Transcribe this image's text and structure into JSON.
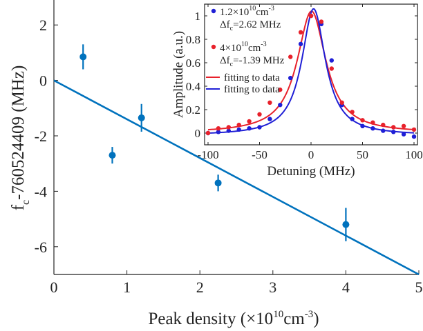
{
  "chart_data": [
    {
      "type": "scatter",
      "xlabel_main": "Peak density (×10",
      "xlabel_sup": "10",
      "xlabel_unit": "cm",
      "xlabel_unit_sup": "-3",
      "xlabel_close": ")",
      "ylabel_f": "f",
      "ylabel_sub": "c",
      "ylabel_rest": "-760524409 (MHz)",
      "xlim": [
        0,
        5
      ],
      "ylim": [
        -7,
        3
      ],
      "xticks": [
        0,
        1,
        2,
        3,
        4,
        5
      ],
      "yticks": [
        -6,
        -4,
        -2,
        0,
        2
      ],
      "color": "#0072BD",
      "series": [
        {
          "x": [
            0.4,
            0.8,
            1.2,
            2.25,
            4.0
          ],
          "y": [
            0.85,
            -2.7,
            -1.35,
            -3.7,
            -5.2
          ],
          "yerr": [
            0.45,
            0.3,
            0.5,
            0.3,
            0.6
          ]
        }
      ],
      "fit_line": {
        "x": [
          0,
          5
        ],
        "y": [
          0.0,
          -7.0
        ]
      }
    },
    {
      "type": "scatter",
      "xlabel": "Detuning (MHz)",
      "ylabel": "Amplitude (a.u.)",
      "xlim": [
        -100,
        100
      ],
      "ylim": [
        -0.1,
        1.1
      ],
      "xticks": [
        -100,
        -50,
        0,
        50,
        100
      ],
      "yticks": [
        0,
        0.2,
        0.4,
        0.6,
        0.8,
        1
      ],
      "legend": [
        {
          "line1": "1.2×10",
          "sup1": "10",
          "unit1": "cm",
          "sup2": "-3",
          "line2": "Δf",
          "sub": "c",
          "line2b": "=2.62 MHz",
          "color": "#1f1fd6"
        },
        {
          "line1": "4×10",
          "sup1": "10",
          "unit1": "cm",
          "sup2": "-3",
          "line2": "Δf",
          "sub": "c",
          "line2b": "=-1.39 MHz",
          "color": "#e8212b"
        },
        {
          "label": "fitting to data",
          "color": "#e8212b"
        },
        {
          "label": "fitting to data",
          "color": "#1f1fd6"
        }
      ],
      "series": [
        {
          "color": "#1f1fd6",
          "x": [
            -100,
            -90,
            -80,
            -70,
            -60,
            -50,
            -40,
            -30,
            -20,
            -10,
            0,
            10,
            20,
            30,
            40,
            50,
            60,
            70,
            80,
            90,
            100
          ],
          "y": [
            0.0,
            0.01,
            0.02,
            0.03,
            0.04,
            0.05,
            0.12,
            0.24,
            0.47,
            0.76,
            1.0,
            0.93,
            0.62,
            0.24,
            0.12,
            0.06,
            0.04,
            0.02,
            0.01,
            -0.01,
            -0.03
          ]
        },
        {
          "color": "#e8212b",
          "x": [
            -100,
            -90,
            -80,
            -70,
            -60,
            -50,
            -40,
            -30,
            -20,
            -10,
            0,
            10,
            20,
            30,
            40,
            50,
            60,
            70,
            80,
            90,
            100
          ],
          "y": [
            0.0,
            0.04,
            0.05,
            0.07,
            0.1,
            0.16,
            0.26,
            0.37,
            0.65,
            0.86,
            1.0,
            0.95,
            0.55,
            0.26,
            0.18,
            0.11,
            0.09,
            0.07,
            0.05,
            0.06,
            0.03
          ]
        }
      ],
      "fits": [
        {
          "color": "#e8212b",
          "center": 0.5,
          "hwhm": 17.0,
          "amp": 1.04,
          "offset": 0.0
        },
        {
          "color": "#1f1fd6",
          "center": 2.5,
          "hwhm": 14.0,
          "amp": 1.08,
          "offset": -0.02
        }
      ]
    }
  ]
}
